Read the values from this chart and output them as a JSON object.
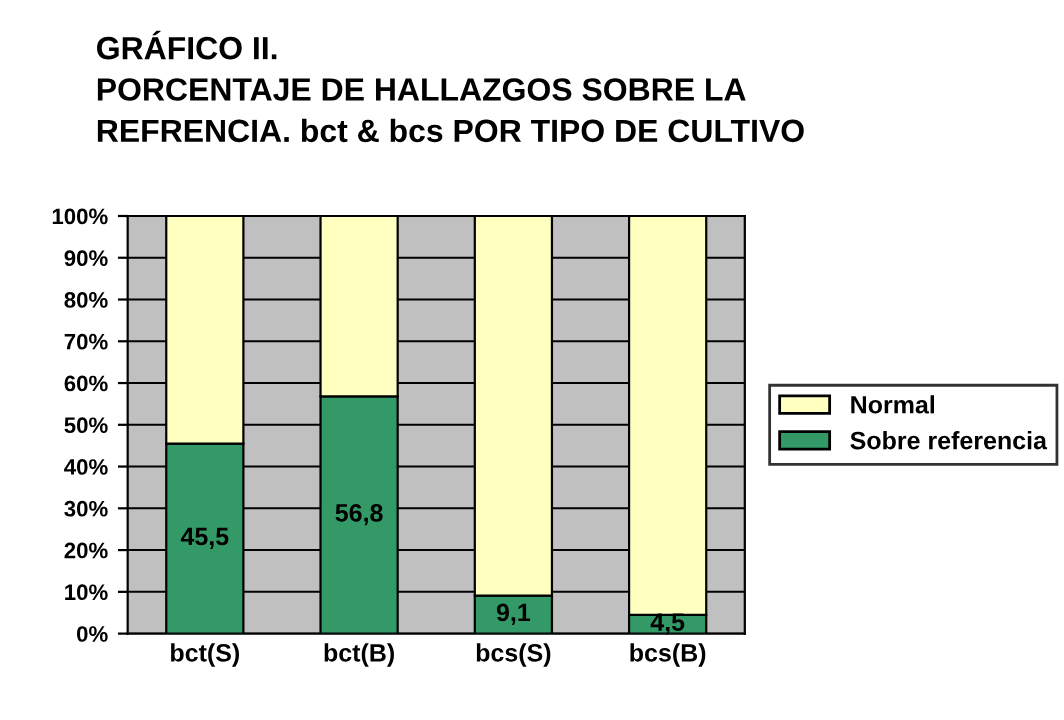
{
  "chart_data": {
    "type": "bar",
    "stacked": true,
    "title": "GRÁFICO II.\nPORCENTAJE DE HALLAZGOS SOBRE LA\nREFRENCIA. bct & bcs POR TIPO DE CULTIVO",
    "categories": [
      "bct(S)",
      "bct(B)",
      "bcs(S)",
      "bcs(B)"
    ],
    "series": [
      {
        "name": "Sobre referencia",
        "color": "#339966",
        "values": [
          45.5,
          56.8,
          9.1,
          4.5
        ],
        "value_labels": [
          "45,5",
          "56,8",
          "9,1",
          "4,5"
        ]
      },
      {
        "name": "Normal",
        "color": "#ffffc0",
        "values": [
          54.5,
          43.2,
          90.9,
          95.5
        ]
      }
    ],
    "ylim": [
      0,
      100
    ],
    "yticks": [
      {
        "value": 0,
        "label": "0%"
      },
      {
        "value": 10,
        "label": "10%"
      },
      {
        "value": 20,
        "label": "20%"
      },
      {
        "value": 30,
        "label": "30%"
      },
      {
        "value": 40,
        "label": "40%"
      },
      {
        "value": 50,
        "label": "50%"
      },
      {
        "value": 60,
        "label": "60%"
      },
      {
        "value": 70,
        "label": "70%"
      },
      {
        "value": 80,
        "label": "80%"
      },
      {
        "value": 90,
        "label": "90%"
      },
      {
        "value": 100,
        "label": "100%"
      }
    ],
    "grid": "y",
    "legend": "right"
  }
}
